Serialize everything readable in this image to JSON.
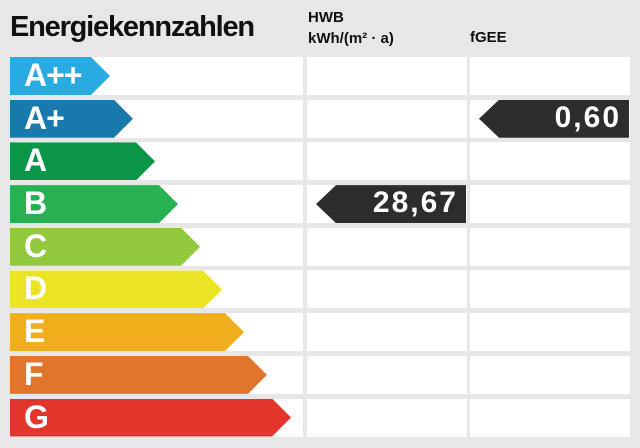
{
  "header": {
    "title": "Energiekennzahlen",
    "hwb_label": "HWB",
    "hwb_unit": "kWh/(m² · a)",
    "fgee_label": "fGEE"
  },
  "colors": {
    "background": "#e7e7e7",
    "cell": "#ffffff",
    "value_arrow": "#2d2d2d",
    "text": "#101010",
    "value_text": "#ffffff"
  },
  "scale": {
    "rows": [
      {
        "grade": "A++",
        "color": "#29abe2",
        "arrow_width": 100,
        "hwb": "",
        "fgee": ""
      },
      {
        "grade": "A+",
        "color": "#1879ad",
        "arrow_width": 123,
        "hwb": "",
        "fgee": "0,60"
      },
      {
        "grade": "A",
        "color": "#0a9547",
        "arrow_width": 145,
        "hwb": "",
        "fgee": ""
      },
      {
        "grade": "B",
        "color": "#27b150",
        "arrow_width": 168,
        "hwb": "28,67",
        "fgee": ""
      },
      {
        "grade": "C",
        "color": "#91c83d",
        "arrow_width": 190,
        "hwb": "",
        "fgee": ""
      },
      {
        "grade": "D",
        "color": "#ebe424",
        "arrow_width": 212,
        "hwb": "",
        "fgee": ""
      },
      {
        "grade": "E",
        "color": "#f0ae1c",
        "arrow_width": 234,
        "hwb": "",
        "fgee": ""
      },
      {
        "grade": "F",
        "color": "#e0752b",
        "arrow_width": 257,
        "hwb": "",
        "fgee": ""
      },
      {
        "grade": "G",
        "color": "#e2352c",
        "arrow_width": 281,
        "hwb": "",
        "fgee": ""
      }
    ]
  },
  "values": {
    "hwb": {
      "value": "28,67",
      "grade": "B"
    },
    "fgee": {
      "value": "0,60",
      "grade": "A+"
    }
  }
}
